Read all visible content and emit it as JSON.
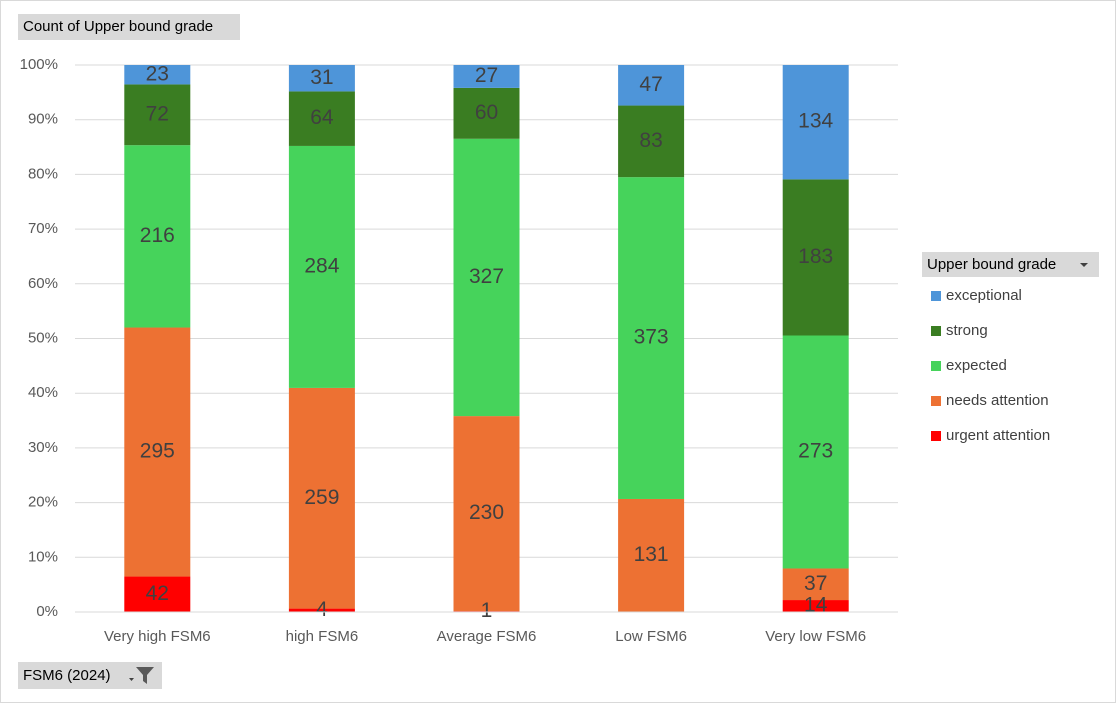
{
  "chart_data": {
    "type": "bar",
    "stacking": "percent",
    "title": "Count of Upper bound grade",
    "legend_title": "Upper bound grade",
    "filter_label": "FSM6 (2024)",
    "categories": [
      "Very high FSM6",
      "high FSM6",
      "Average FSM6",
      "Low FSM6",
      "Very low FSM6"
    ],
    "series": [
      {
        "name": "urgent attention",
        "color": "#ff0000",
        "values": [
          42,
          4,
          1,
          null,
          14
        ]
      },
      {
        "name": "needs attention",
        "color": "#ed7133",
        "values": [
          295,
          259,
          230,
          131,
          37
        ]
      },
      {
        "name": "expected",
        "color": "#46d35b",
        "values": [
          216,
          284,
          327,
          373,
          273
        ]
      },
      {
        "name": "strong",
        "color": "#3a7d22",
        "values": [
          72,
          64,
          60,
          83,
          183
        ]
      },
      {
        "name": "exceptional",
        "color": "#4e95d9",
        "values": [
          23,
          31,
          27,
          47,
          134
        ]
      }
    ],
    "ylim": [
      0,
      100
    ],
    "yticks": [
      {
        "value": 0,
        "label": "0%"
      },
      {
        "value": 10,
        "label": "10%"
      },
      {
        "value": 20,
        "label": "20%"
      },
      {
        "value": 30,
        "label": "30%"
      },
      {
        "value": 40,
        "label": "40%"
      },
      {
        "value": 50,
        "label": "50%"
      },
      {
        "value": 60,
        "label": "60%"
      },
      {
        "value": 70,
        "label": "70%"
      },
      {
        "value": 80,
        "label": "80%"
      },
      {
        "value": 90,
        "label": "90%"
      },
      {
        "value": 100,
        "label": "100%"
      }
    ],
    "grid": true,
    "legend": "right"
  }
}
